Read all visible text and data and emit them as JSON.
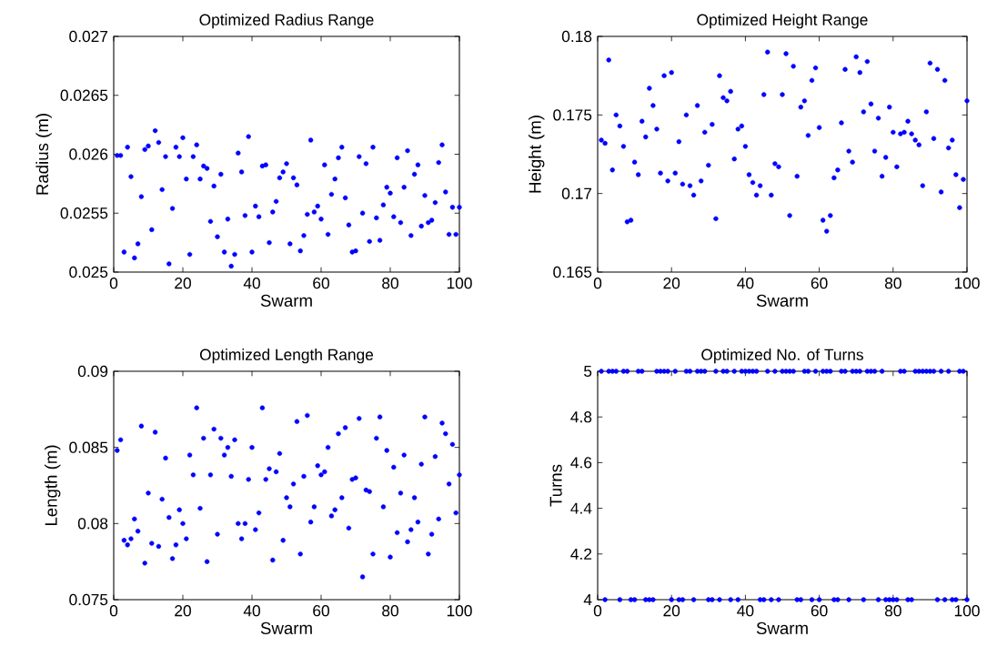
{
  "chart_data": [
    {
      "type": "scatter",
      "title": "Optimized Radius Range",
      "xlabel": "Swarm",
      "ylabel": "Radius (m)",
      "marker": "circle",
      "color": "#0000ff",
      "xlim": [
        0,
        100
      ],
      "ylim": [
        0.025,
        0.027
      ],
      "xticks": [
        0,
        20,
        40,
        60,
        80,
        100
      ],
      "yticks": [
        0.025,
        0.0255,
        0.026,
        0.0265,
        0.027
      ],
      "x": [
        1,
        2,
        3,
        4,
        5,
        6,
        7,
        8,
        9,
        10,
        11,
        12,
        13,
        14,
        15,
        16,
        17,
        18,
        19,
        20,
        21,
        22,
        23,
        24,
        25,
        26,
        27,
        28,
        29,
        30,
        31,
        32,
        33,
        34,
        35,
        36,
        37,
        38,
        39,
        40,
        41,
        42,
        43,
        44,
        45,
        46,
        47,
        48,
        49,
        50,
        51,
        52,
        53,
        54,
        55,
        56,
        57,
        58,
        59,
        60,
        61,
        62,
        63,
        64,
        65,
        66,
        67,
        68,
        69,
        70,
        71,
        72,
        73,
        74,
        75,
        76,
        77,
        78,
        79,
        80,
        81,
        82,
        83,
        84,
        85,
        86,
        87,
        88,
        89,
        90,
        91,
        92,
        93,
        94,
        95,
        96,
        97,
        98,
        99,
        100
      ],
      "values": [
        0.02599,
        0.02599,
        0.02517,
        0.02606,
        0.02581,
        0.02512,
        0.02524,
        0.02564,
        0.02604,
        0.02607,
        0.02536,
        0.0262,
        0.0261,
        0.0257,
        0.02598,
        0.02507,
        0.02554,
        0.02606,
        0.02598,
        0.02614,
        0.02579,
        0.02515,
        0.02598,
        0.02608,
        0.02579,
        0.0259,
        0.02588,
        0.02543,
        0.02573,
        0.0253,
        0.02583,
        0.02517,
        0.02545,
        0.02505,
        0.02515,
        0.02601,
        0.02585,
        0.02548,
        0.02615,
        0.02517,
        0.02556,
        0.02547,
        0.0259,
        0.02591,
        0.02525,
        0.02551,
        0.0256,
        0.0258,
        0.02585,
        0.02592,
        0.02524,
        0.0258,
        0.02574,
        0.02518,
        0.02531,
        0.02549,
        0.02612,
        0.02551,
        0.02556,
        0.02545,
        0.02591,
        0.02532,
        0.02566,
        0.02579,
        0.02597,
        0.02606,
        0.02563,
        0.0254,
        0.02517,
        0.02518,
        0.02598,
        0.0255,
        0.02592,
        0.02526,
        0.02606,
        0.02546,
        0.02527,
        0.02557,
        0.02572,
        0.02567,
        0.02547,
        0.02597,
        0.02542,
        0.02572,
        0.02603,
        0.02531,
        0.02583,
        0.02591,
        0.02539,
        0.02565,
        0.02542,
        0.02544,
        0.02559,
        0.02593,
        0.02608,
        0.02568,
        0.02532,
        0.02555,
        0.02532,
        0.02555
      ]
    },
    {
      "type": "scatter",
      "title": "Optimized Height Range",
      "xlabel": "Swarm",
      "ylabel": "Height (m)",
      "marker": "circle",
      "color": "#0000ff",
      "xlim": [
        0,
        100
      ],
      "ylim": [
        0.165,
        0.18
      ],
      "xticks": [
        0,
        20,
        40,
        60,
        80,
        100
      ],
      "yticks": [
        0.165,
        0.17,
        0.175,
        0.18
      ],
      "x": [
        1,
        2,
        3,
        4,
        5,
        6,
        7,
        8,
        9,
        10,
        11,
        12,
        13,
        14,
        15,
        16,
        17,
        18,
        19,
        20,
        21,
        22,
        23,
        24,
        25,
        26,
        27,
        28,
        29,
        30,
        31,
        32,
        33,
        34,
        35,
        36,
        37,
        38,
        39,
        40,
        41,
        42,
        43,
        44,
        45,
        46,
        47,
        48,
        49,
        50,
        51,
        52,
        53,
        54,
        55,
        56,
        57,
        58,
        59,
        60,
        61,
        62,
        63,
        64,
        65,
        66,
        67,
        68,
        69,
        70,
        71,
        72,
        73,
        74,
        75,
        76,
        77,
        78,
        79,
        80,
        81,
        82,
        83,
        84,
        85,
        86,
        87,
        88,
        89,
        90,
        91,
        92,
        93,
        94,
        95,
        96,
        97,
        98,
        99,
        100
      ],
      "values": [
        0.1734,
        0.1732,
        0.1785,
        0.1715,
        0.175,
        0.1743,
        0.173,
        0.1682,
        0.1683,
        0.172,
        0.1712,
        0.1746,
        0.1736,
        0.1767,
        0.1756,
        0.1741,
        0.1713,
        0.1775,
        0.1708,
        0.1777,
        0.1713,
        0.1733,
        0.1706,
        0.175,
        0.1705,
        0.1699,
        0.1756,
        0.1708,
        0.1739,
        0.1718,
        0.1744,
        0.1684,
        0.1775,
        0.1761,
        0.1759,
        0.1765,
        0.1722,
        0.1741,
        0.1743,
        0.173,
        0.1712,
        0.1707,
        0.1699,
        0.1705,
        0.1763,
        0.179,
        0.1699,
        0.1719,
        0.1717,
        0.1763,
        0.1789,
        0.1686,
        0.1781,
        0.1711,
        0.1755,
        0.1759,
        0.1737,
        0.1772,
        0.178,
        0.1742,
        0.1683,
        0.1676,
        0.1686,
        0.171,
        0.1715,
        0.1745,
        0.1779,
        0.1727,
        0.172,
        0.1787,
        0.1777,
        0.1752,
        0.1784,
        0.1757,
        0.1727,
        0.1748,
        0.1711,
        0.1723,
        0.1755,
        0.1739,
        0.1717,
        0.1738,
        0.1739,
        0.1746,
        0.1738,
        0.1734,
        0.1731,
        0.1705,
        0.1752,
        0.1783,
        0.1735,
        0.1779,
        0.1701,
        0.1772,
        0.1729,
        0.1734,
        0.1712,
        0.1691,
        0.1709,
        0.1759
      ]
    },
    {
      "type": "scatter",
      "title": "Optimized Length Range",
      "xlabel": "Swarm",
      "ylabel": "Length (m)",
      "marker": "circle",
      "color": "#0000ff",
      "xlim": [
        0,
        100
      ],
      "ylim": [
        0.075,
        0.09
      ],
      "xticks": [
        0,
        20,
        40,
        60,
        80,
        100
      ],
      "yticks": [
        0.075,
        0.08,
        0.085,
        0.09
      ],
      "x": [
        1,
        2,
        3,
        4,
        5,
        6,
        7,
        8,
        9,
        10,
        11,
        12,
        13,
        14,
        15,
        16,
        17,
        18,
        19,
        20,
        21,
        22,
        23,
        24,
        25,
        26,
        27,
        28,
        29,
        30,
        31,
        32,
        33,
        34,
        35,
        36,
        37,
        38,
        39,
        40,
        41,
        42,
        43,
        44,
        45,
        46,
        47,
        48,
        49,
        50,
        51,
        52,
        53,
        54,
        55,
        56,
        57,
        58,
        59,
        60,
        61,
        62,
        63,
        64,
        65,
        66,
        67,
        68,
        69,
        70,
        71,
        72,
        73,
        74,
        75,
        76,
        77,
        78,
        79,
        80,
        81,
        82,
        83,
        84,
        85,
        86,
        87,
        88,
        89,
        90,
        91,
        92,
        93,
        94,
        95,
        96,
        97,
        98,
        99,
        100
      ],
      "values": [
        0.0848,
        0.0855,
        0.0789,
        0.0786,
        0.079,
        0.0803,
        0.0795,
        0.0864,
        0.0774,
        0.082,
        0.0787,
        0.086,
        0.0785,
        0.0816,
        0.0843,
        0.0804,
        0.0777,
        0.0786,
        0.0809,
        0.08,
        0.079,
        0.0845,
        0.0832,
        0.0876,
        0.081,
        0.0856,
        0.0775,
        0.0832,
        0.0862,
        0.0793,
        0.0856,
        0.0845,
        0.085,
        0.0831,
        0.0855,
        0.08,
        0.079,
        0.08,
        0.0829,
        0.085,
        0.0796,
        0.0807,
        0.0876,
        0.0829,
        0.0836,
        0.0776,
        0.0834,
        0.0846,
        0.0789,
        0.0817,
        0.0811,
        0.0826,
        0.0867,
        0.078,
        0.0831,
        0.0871,
        0.0801,
        0.0811,
        0.0838,
        0.0832,
        0.0834,
        0.085,
        0.0805,
        0.0809,
        0.0859,
        0.0817,
        0.0863,
        0.0797,
        0.0829,
        0.083,
        0.0869,
        0.0765,
        0.0822,
        0.0821,
        0.078,
        0.0856,
        0.087,
        0.0811,
        0.0848,
        0.0778,
        0.0837,
        0.0794,
        0.082,
        0.0845,
        0.0788,
        0.0796,
        0.0817,
        0.0801,
        0.0839,
        0.087,
        0.078,
        0.0793,
        0.0844,
        0.0803,
        0.0866,
        0.0859,
        0.0826,
        0.0852,
        0.0807,
        0.0832
      ]
    },
    {
      "type": "scatter",
      "title": "Optimized No. of Turns",
      "xlabel": "Swarm",
      "ylabel": "Turns",
      "marker": "circle",
      "color": "#0000ff",
      "xlim": [
        0,
        100
      ],
      "ylim": [
        4,
        5
      ],
      "xticks": [
        0,
        20,
        40,
        60,
        80,
        100
      ],
      "yticks": [
        4,
        4.2,
        4.4,
        4.6,
        4.8,
        5
      ],
      "x": [
        1,
        2,
        3,
        4,
        5,
        6,
        7,
        8,
        9,
        10,
        11,
        12,
        13,
        14,
        15,
        16,
        17,
        18,
        19,
        20,
        21,
        22,
        23,
        24,
        25,
        26,
        27,
        28,
        29,
        30,
        31,
        32,
        33,
        34,
        35,
        36,
        37,
        38,
        39,
        40,
        41,
        42,
        43,
        44,
        45,
        46,
        47,
        48,
        49,
        50,
        51,
        52,
        53,
        54,
        55,
        56,
        57,
        58,
        59,
        60,
        61,
        62,
        63,
        64,
        65,
        66,
        67,
        68,
        69,
        70,
        71,
        72,
        73,
        74,
        75,
        76,
        77,
        78,
        79,
        80,
        81,
        82,
        83,
        84,
        85,
        86,
        87,
        88,
        89,
        90,
        91,
        92,
        93,
        94,
        95,
        96,
        97,
        98,
        99,
        100
      ],
      "values": [
        5,
        4,
        5,
        5,
        5,
        4,
        5,
        5,
        4,
        4,
        5,
        5,
        4,
        4,
        4,
        5,
        5,
        5,
        5,
        4,
        5,
        4,
        4,
        5,
        5,
        4,
        5,
        5,
        5,
        4,
        4,
        5,
        4,
        5,
        5,
        4,
        5,
        4,
        5,
        5,
        5,
        5,
        5,
        4,
        4,
        5,
        4,
        5,
        4,
        5,
        5,
        5,
        5,
        4,
        4,
        5,
        5,
        4,
        5,
        4,
        5,
        5,
        5,
        4,
        4,
        5,
        5,
        4,
        5,
        5,
        5,
        4,
        5,
        5,
        5,
        4,
        5,
        4,
        4,
        4,
        4,
        5,
        5,
        4,
        4,
        5,
        5,
        5,
        5,
        5,
        5,
        4,
        5,
        4,
        5,
        4,
        4,
        5,
        5,
        4
      ]
    }
  ]
}
